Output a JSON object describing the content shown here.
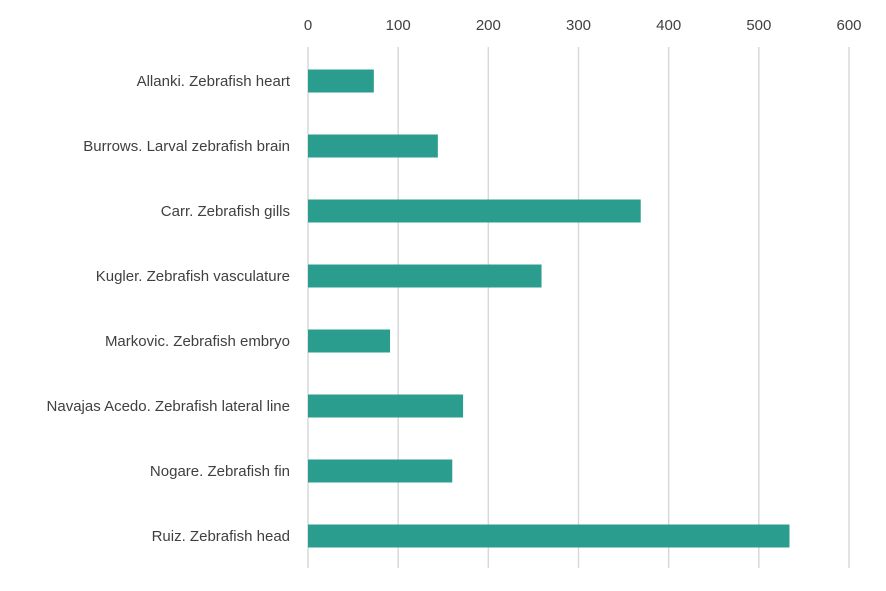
{
  "chart_data": {
    "type": "bar",
    "orientation": "horizontal",
    "title": "",
    "xlabel": "",
    "ylabel": "",
    "xlim": [
      0,
      600
    ],
    "x_ticks": [
      0,
      100,
      200,
      300,
      400,
      500,
      600
    ],
    "x_axis_position": "top",
    "grid": true,
    "legend": "none",
    "bar_color": "#2a9d8f",
    "categories": [
      "Allanki. Zebrafish heart",
      "Burrows. Larval zebrafish brain",
      "Carr. Zebrafish gills",
      "Kugler. Zebrafish vasculature",
      "Markovic. Zebrafish embryo",
      "Navajas Acedo. Zebrafish lateral line",
      "Nogare. Zebrafish fin",
      "Ruiz. Zebrafish head"
    ],
    "values": [
      73,
      144,
      369,
      259,
      91,
      172,
      160,
      534
    ]
  }
}
